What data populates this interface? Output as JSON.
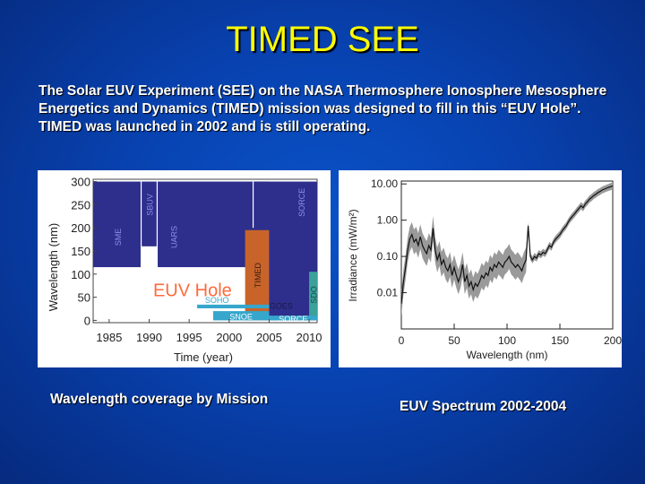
{
  "title": "TIMED SEE",
  "description": "The Solar EUV Experiment (SEE) on the NASA Thermosphere Ionosphere Mesosphere Energetics and Dynamics (TIMED) mission was designed to fill in this “EUV Hole”.  TIMED was launched in 2002 and is still operating.",
  "captions": {
    "left": "Wavelength coverage by Mission",
    "right": "EUV Spectrum 2002-2004"
  },
  "colors": {
    "navy": "#2e2e8c",
    "orange": "#c8642a",
    "teal": "#3aa29a",
    "cyan": "#36a6cc",
    "lightblue": "#8a8ee8",
    "label_white": "#ffffff",
    "euv_hole": "#ff6a3c"
  },
  "chart_data": [
    {
      "type": "table",
      "xlabel": "Time (year)",
      "ylabel": "Wavelength (nm)",
      "xlim": [
        1983,
        2011
      ],
      "ylim": [
        -5,
        305
      ],
      "x_ticks": [
        "1985",
        "1990",
        "1995",
        "2000",
        "2005",
        "2010"
      ],
      "x_tick_values": [
        1985,
        1990,
        1995,
        2000,
        2005,
        2010
      ],
      "y_ticks": [
        "300",
        "250",
        "200",
        "150",
        "100",
        "50",
        "0"
      ],
      "y_tick_values": [
        300,
        250,
        200,
        150,
        100,
        50,
        0
      ],
      "annotation": "EUV Hole",
      "missions": [
        {
          "name": "SME",
          "x": [
            1983,
            1989
          ],
          "y": [
            115,
            300
          ],
          "color": "#2e2e8c",
          "label_color": "#8a8ee8",
          "label_rotate": true
        },
        {
          "name": "SBUV",
          "x": [
            1989,
            1991
          ],
          "y": [
            160,
            300
          ],
          "color": "#2e2e8c",
          "label_color": "#8a8ee8",
          "label_rotate": true
        },
        {
          "name": "UARS",
          "x": [
            1991,
            2005
          ],
          "y": [
            115,
            300
          ],
          "color": "#2e2e8c",
          "label_color": "#8a8ee8",
          "label_rotate": true
        },
        {
          "name": "SORCE",
          "x": [
            2003,
            2011
          ],
          "y": [
            0,
            300
          ],
          "color": "#2e2e8c",
          "label_color": "#8a8ee8",
          "label_rotate": true
        },
        {
          "name": "TIMED",
          "x": [
            2002,
            2005
          ],
          "y": [
            0,
            195
          ],
          "color": "#c8642a",
          "label_color": "#3a1a0a",
          "label_rotate": true
        },
        {
          "name": "SDO",
          "x": [
            2010,
            2011
          ],
          "y": [
            5,
            105
          ],
          "color": "#3aa29a",
          "label_color": "#1a4a44",
          "label_rotate": true
        },
        {
          "name": "GOES",
          "x": [
            2005,
            2011
          ],
          "y": [
            5,
            10
          ],
          "color": "#36a6cc",
          "label_color": "#1a1a4a",
          "label_rotate": false
        },
        {
          "name": "SOHO",
          "x": [
            1996,
            2005
          ],
          "y": [
            26,
            34
          ],
          "color": "#36a6cc",
          "label_color": "#36a6cc",
          "label_rotate": false
        },
        {
          "name": "SNOE",
          "x": [
            1998,
            2005
          ],
          "y": [
            0,
            20
          ],
          "color": "#36a6cc",
          "label_color": "#ffffff",
          "label_rotate": false
        },
        {
          "name": "SORCE",
          "x": [
            2005,
            2011
          ],
          "y": [
            0,
            10
          ],
          "color": "#36a6cc",
          "label_color": "#ffffff",
          "label_rotate": false
        }
      ]
    },
    {
      "type": "line",
      "xlabel": "Wavelength (nm)",
      "ylabel": "Irradiance (mW/m²)",
      "xlim": [
        0,
        200
      ],
      "ylim": [
        0.001,
        12
      ],
      "log_y": true,
      "x_ticks": [
        "0",
        "50",
        "100",
        "150",
        "200"
      ],
      "x_tick_values": [
        0,
        50,
        100,
        150,
        200
      ],
      "y_ticks": [
        "10.00",
        "1.00",
        "0.10",
        "0.01"
      ],
      "y_tick_values": [
        10,
        1,
        0.1,
        0.01
      ],
      "series": [
        {
          "x": [
            0,
            2,
            4,
            6,
            8,
            10,
            12,
            14,
            16,
            18,
            20,
            22,
            24,
            26,
            28,
            30,
            32,
            34,
            36,
            38,
            40,
            42,
            44,
            46,
            48,
            50,
            52,
            54,
            56,
            58,
            60,
            62,
            64,
            66,
            68,
            70,
            72,
            74,
            76,
            78,
            80,
            82,
            84,
            86,
            88,
            90,
            92,
            94,
            96,
            98,
            100,
            102,
            104,
            106,
            108,
            110,
            112,
            114,
            116,
            118,
            120,
            122,
            124,
            126,
            128,
            130,
            132,
            134,
            136,
            138,
            140,
            142,
            144,
            146,
            148,
            150,
            152,
            154,
            156,
            158,
            160,
            162,
            164,
            166,
            168,
            170,
            172,
            174,
            176,
            178,
            180,
            182,
            184,
            186,
            188,
            190,
            192,
            194,
            196,
            198,
            200
          ],
          "y": [
            0.005,
            0.02,
            0.05,
            0.15,
            0.3,
            0.4,
            0.25,
            0.3,
            0.2,
            0.35,
            0.2,
            0.15,
            0.12,
            0.2,
            0.15,
            0.6,
            0.15,
            0.08,
            0.12,
            0.06,
            0.08,
            0.05,
            0.04,
            0.06,
            0.03,
            0.05,
            0.03,
            0.02,
            0.03,
            0.06,
            0.02,
            0.03,
            0.015,
            0.02,
            0.012,
            0.018,
            0.015,
            0.02,
            0.03,
            0.025,
            0.035,
            0.03,
            0.05,
            0.04,
            0.06,
            0.05,
            0.07,
            0.06,
            0.05,
            0.07,
            0.08,
            0.1,
            0.07,
            0.06,
            0.05,
            0.06,
            0.05,
            0.04,
            0.06,
            0.08,
            0.7,
            0.1,
            0.08,
            0.1,
            0.09,
            0.12,
            0.11,
            0.13,
            0.12,
            0.15,
            0.2,
            0.18,
            0.25,
            0.3,
            0.35,
            0.4,
            0.5,
            0.6,
            0.7,
            0.9,
            1.1,
            1.3,
            1.5,
            1.8,
            2.1,
            2.5,
            2.2,
            2.8,
            3.2,
            3.8,
            4.2,
            4.8,
            5.2,
            5.8,
            6.2,
            6.8,
            7.2,
            7.6,
            8.0,
            8.4,
            8.8
          ]
        }
      ]
    }
  ]
}
